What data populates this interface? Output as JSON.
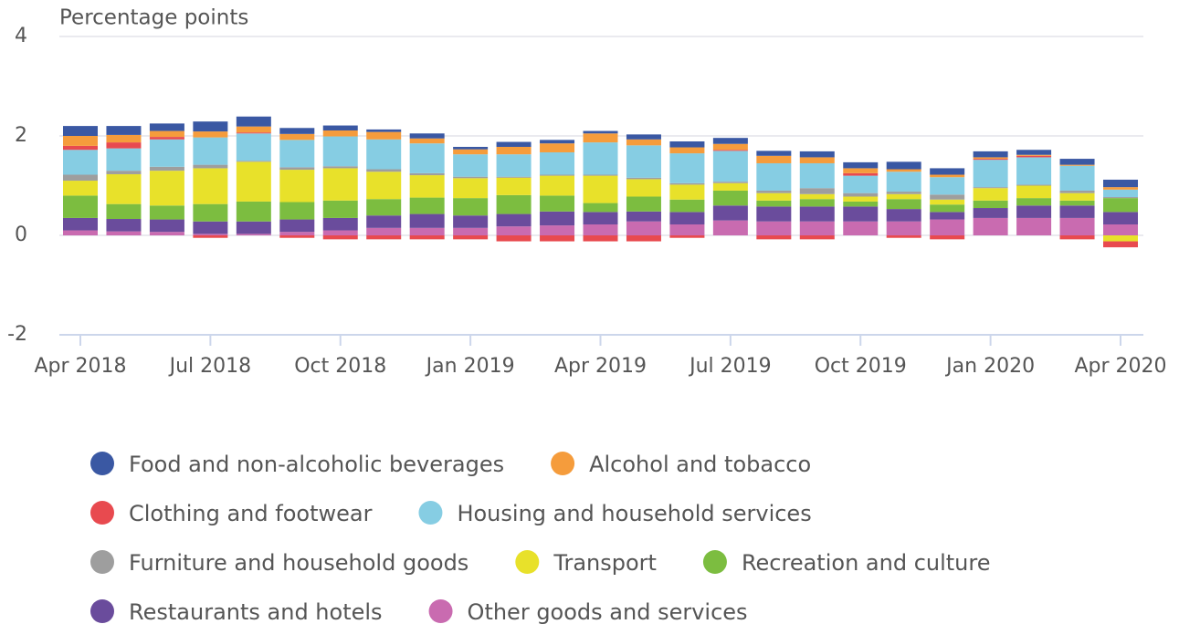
{
  "chart_data": {
    "type": "stacked-bar",
    "y_label": "Percentage points",
    "categories": [
      "Apr 2018",
      null,
      null,
      "Jul 2018",
      null,
      null,
      "Oct 2018",
      null,
      null,
      "Jan 2019",
      null,
      null,
      "Apr 2019",
      null,
      null,
      "Jul 2019",
      null,
      null,
      "Oct 2019",
      null,
      null,
      "Jan 2020",
      null,
      null,
      "Apr 2020"
    ],
    "ylim": [
      -2,
      4
    ],
    "yticks": [
      -2,
      0,
      2,
      4
    ],
    "grid": true,
    "series": [
      {
        "name": "Food and non-alcoholic beverages",
        "color": "#3a58a3",
        "values": [
          0.2,
          0.18,
          0.15,
          0.2,
          0.2,
          0.12,
          0.1,
          0.05,
          0.1,
          0.05,
          0.1,
          0.07,
          0.05,
          0.1,
          0.12,
          0.12,
          0.1,
          0.12,
          0.12,
          0.15,
          0.13,
          0.12,
          0.1,
          0.12,
          0.15
        ]
      },
      {
        "name": "Alcohol and tobacco",
        "color": "#f59c3c",
        "values": [
          0.2,
          0.15,
          0.12,
          0.12,
          0.12,
          0.12,
          0.12,
          0.15,
          0.1,
          0.1,
          0.15,
          0.18,
          0.18,
          0.12,
          0.12,
          0.12,
          0.15,
          0.12,
          0.1,
          0.05,
          0.05,
          0.03,
          0.02,
          0.02,
          0.05
        ]
      },
      {
        "name": "Clothing and footwear",
        "color": "#e84a4f",
        "values": [
          0.08,
          0.12,
          0.05,
          -0.05,
          0.02,
          -0.05,
          -0.08,
          -0.08,
          -0.08,
          -0.08,
          -0.12,
          -0.12,
          -0.12,
          -0.12,
          -0.05,
          0.02,
          -0.08,
          -0.08,
          0.05,
          -0.05,
          -0.08,
          0.02,
          0.03,
          -0.08,
          -0.12
        ]
      },
      {
        "name": "Housing and household services",
        "color": "#86cde3",
        "values": [
          0.5,
          0.45,
          0.55,
          0.55,
          0.55,
          0.55,
          0.6,
          0.6,
          0.6,
          0.45,
          0.45,
          0.45,
          0.65,
          0.65,
          0.6,
          0.62,
          0.55,
          0.5,
          0.35,
          0.4,
          0.35,
          0.55,
          0.55,
          0.5,
          0.15
        ]
      },
      {
        "name": "Furniture and household goods",
        "color": "#9e9e9e",
        "values": [
          0.12,
          0.07,
          0.08,
          0.07,
          0.02,
          0.05,
          0.04,
          0.05,
          0.04,
          0.03,
          0.02,
          0.02,
          0.02,
          0.03,
          0.03,
          0.03,
          0.05,
          0.12,
          0.07,
          0.05,
          0.1,
          0.02,
          0.02,
          0.05,
          0.02
        ]
      },
      {
        "name": "Transport",
        "color": "#e8e12a",
        "values": [
          0.3,
          0.6,
          0.7,
          0.72,
          0.8,
          0.65,
          0.65,
          0.55,
          0.45,
          0.4,
          0.35,
          0.4,
          0.55,
          0.35,
          0.3,
          0.15,
          0.15,
          0.1,
          0.1,
          0.1,
          0.1,
          0.25,
          0.25,
          0.15,
          -0.12
        ]
      },
      {
        "name": "Recreation and culture",
        "color": "#7cbd40",
        "values": [
          0.45,
          0.3,
          0.28,
          0.35,
          0.4,
          0.35,
          0.35,
          0.33,
          0.33,
          0.35,
          0.38,
          0.32,
          0.18,
          0.3,
          0.25,
          0.3,
          0.12,
          0.15,
          0.1,
          0.2,
          0.15,
          0.15,
          0.15,
          0.1,
          0.28
        ]
      },
      {
        "name": "Restaurants and hotels",
        "color": "#6a4c9c",
        "values": [
          0.25,
          0.25,
          0.25,
          0.25,
          0.25,
          0.25,
          0.25,
          0.25,
          0.28,
          0.25,
          0.25,
          0.28,
          0.25,
          0.2,
          0.25,
          0.3,
          0.3,
          0.3,
          0.3,
          0.25,
          0.15,
          0.2,
          0.25,
          0.25,
          0.25
        ]
      },
      {
        "name": "Other goods and services",
        "color": "#c96bb0",
        "values": [
          0.1,
          0.08,
          0.07,
          0.03,
          0.03,
          0.07,
          0.1,
          0.15,
          0.15,
          0.15,
          0.18,
          0.2,
          0.22,
          0.28,
          0.22,
          0.3,
          0.28,
          0.28,
          0.28,
          0.28,
          0.32,
          0.35,
          0.35,
          0.35,
          0.22
        ]
      }
    ]
  }
}
